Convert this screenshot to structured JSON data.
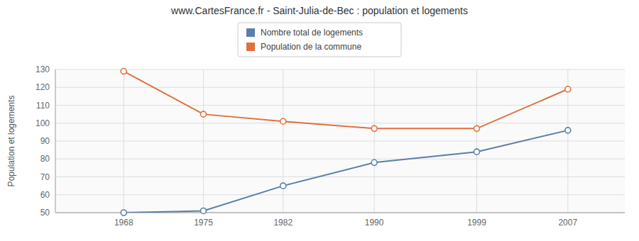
{
  "chart_data": {
    "type": "line",
    "title": "www.CartesFrance.fr - Saint-Julia-de-Bec : population et logements",
    "ylabel": "Population et logements",
    "x": [
      1968,
      1975,
      1982,
      1990,
      1999,
      2007
    ],
    "series": [
      {
        "name": "Nombre total de logements",
        "color": "#5b7faa",
        "marker": "circle",
        "values": [
          50,
          51,
          65,
          78,
          84,
          96
        ]
      },
      {
        "name": "Population de la commune",
        "color": "#e07040",
        "marker": "circle",
        "values": [
          129,
          105,
          101,
          97,
          97,
          119
        ]
      }
    ],
    "xlim": [
      1962,
      2012
    ],
    "xticks": [
      1968,
      1975,
      1982,
      1990,
      1999,
      2007
    ],
    "ylim": [
      50,
      130
    ],
    "yticks": [
      50,
      60,
      70,
      80,
      90,
      100,
      110,
      120,
      130
    ],
    "grid": true,
    "legend": "top"
  }
}
